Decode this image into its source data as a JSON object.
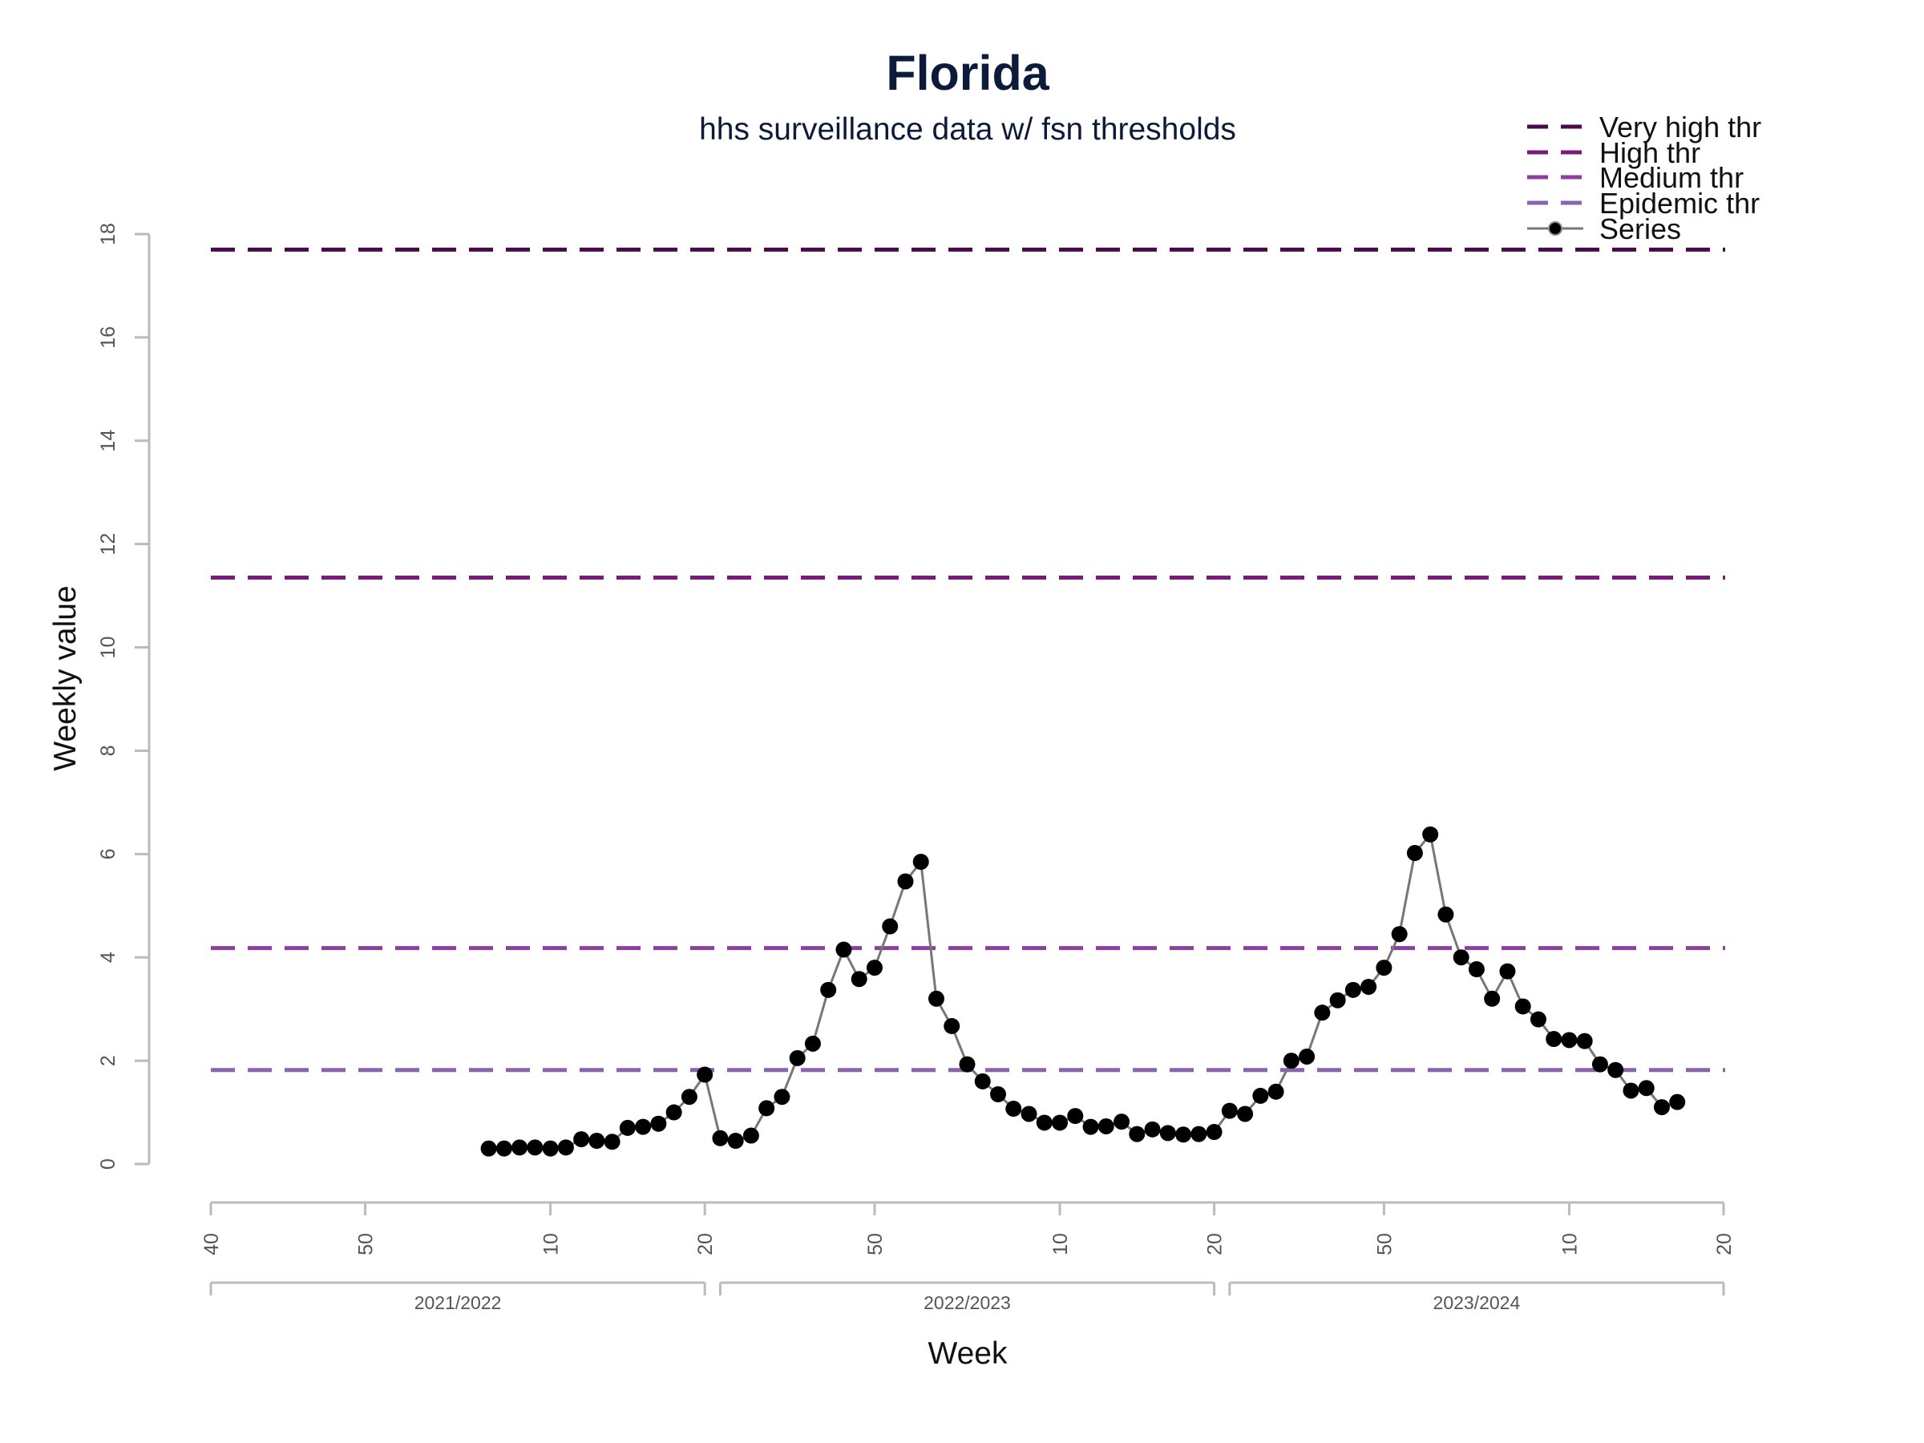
{
  "chart_data": {
    "type": "line",
    "title": "Florida",
    "subtitle": "hhs surveillance data w/ fsn thresholds",
    "xlabel": "Week",
    "ylabel": "Weekly value",
    "ylim": [
      0,
      18
    ],
    "y_ticks": [
      "0",
      "2",
      "4",
      "6",
      "8",
      "10",
      "12",
      "14",
      "16",
      "18"
    ],
    "x_ticks": [
      {
        "label": "40",
        "x": 0
      },
      {
        "label": "50",
        "x": 10
      },
      {
        "label": "10",
        "x": 22
      },
      {
        "label": "20",
        "x": 32
      },
      {
        "label": "50",
        "x": 43
      },
      {
        "label": "10",
        "x": 55
      },
      {
        "label": "20",
        "x": 65
      },
      {
        "label": "50",
        "x": 76
      },
      {
        "label": "10",
        "x": 88
      },
      {
        "label": "20",
        "x": 98
      }
    ],
    "seasons": [
      {
        "label": "2021/2022",
        "start": 0,
        "end": 32
      },
      {
        "label": "2022/2023",
        "start": 33,
        "end": 65
      },
      {
        "label": "2023/2024",
        "start": 66,
        "end": 98
      }
    ],
    "thresholds": [
      {
        "name": "Very high thr",
        "value": 17.7,
        "color": "#4a0a4a"
      },
      {
        "name": "High thr",
        "value": 11.35,
        "color": "#7a1a7a"
      },
      {
        "name": "Medium thr",
        "value": 4.18,
        "color": "#8c3f9c"
      },
      {
        "name": "Epidemic thr",
        "value": 1.82,
        "color": "#8a62ad"
      }
    ],
    "series": [
      {
        "name": "Series",
        "color": "#000000",
        "line_color": "#777777",
        "x": [
          18,
          19,
          20,
          21,
          22,
          23,
          24,
          25,
          26,
          27,
          28,
          29,
          30,
          31,
          32,
          33,
          34,
          35,
          36,
          37,
          38,
          39,
          40,
          41,
          42,
          43,
          44,
          45,
          46,
          47,
          48,
          49,
          50,
          51,
          52,
          53,
          54,
          55,
          56,
          57,
          58,
          59,
          60,
          61,
          62,
          63,
          64,
          65,
          66,
          67,
          68,
          69,
          70,
          71,
          72,
          73,
          74,
          75,
          76,
          77,
          78,
          79,
          80,
          81,
          82,
          83,
          84,
          85,
          86,
          87,
          88,
          89,
          90,
          91,
          92,
          93,
          94,
          95
        ],
        "values": [
          0.3,
          0.3,
          0.32,
          0.32,
          0.3,
          0.32,
          0.48,
          0.45,
          0.43,
          0.7,
          0.72,
          0.78,
          1.0,
          1.3,
          1.73,
          0.5,
          0.45,
          0.55,
          1.08,
          1.3,
          2.05,
          2.33,
          3.37,
          4.15,
          3.58,
          3.8,
          4.6,
          5.47,
          5.85,
          3.2,
          2.67,
          1.93,
          1.6,
          1.35,
          1.07,
          0.97,
          0.8,
          0.8,
          0.93,
          0.72,
          0.73,
          0.82,
          0.58,
          0.67,
          0.6,
          0.57,
          0.58,
          0.62,
          1.03,
          0.97,
          1.32,
          1.4,
          2.0,
          2.08,
          2.93,
          3.17,
          3.37,
          3.43,
          3.8,
          4.45,
          6.02,
          6.38,
          4.83,
          4.0,
          3.77,
          3.2,
          3.73,
          3.05,
          2.8,
          2.42,
          2.4,
          2.38,
          1.93,
          1.82,
          1.42,
          1.47,
          1.1,
          1.2
        ]
      }
    ],
    "legend_position": "top-right",
    "grid": false
  }
}
